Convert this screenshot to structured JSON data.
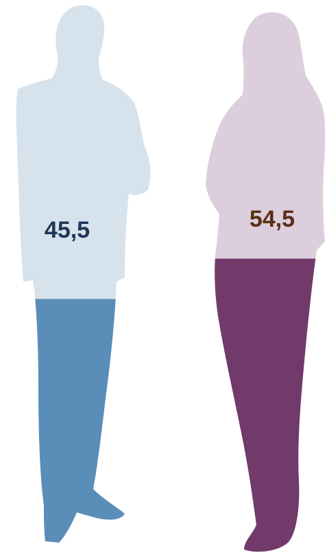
{
  "chart_data": {
    "type": "bar",
    "categories": [
      "male",
      "female"
    ],
    "values": [
      45.5,
      54.5
    ],
    "value_labels": [
      "45,5",
      "54,5"
    ],
    "ylim": [
      0,
      100
    ],
    "colors": {
      "male_fill": "#5a8db8",
      "male_background": "#d6e2ec",
      "female_fill": "#713a6b",
      "female_background": "#dccedd",
      "male_label": "#1e3557",
      "female_label": "#5a2e14"
    }
  }
}
